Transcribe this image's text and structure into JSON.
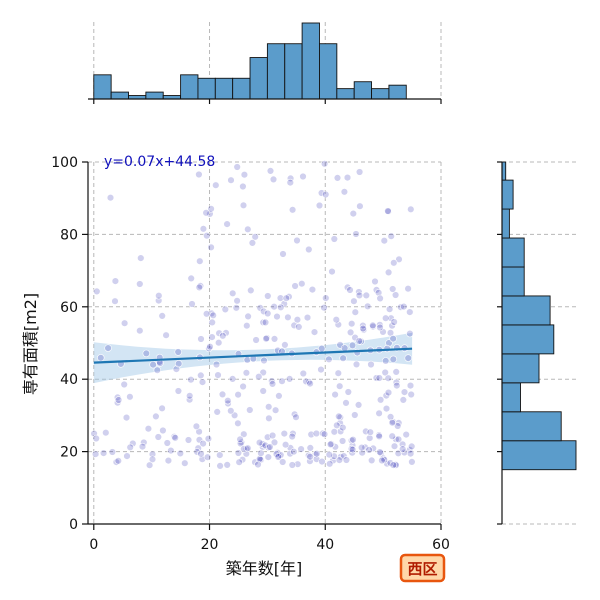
{
  "chart_data": {
    "type": "scatter",
    "title": "",
    "xlabel": "築年数[年]",
    "ylabel": "専有面積[m2]",
    "xlim": [
      -1,
      60
    ],
    "ylim": [
      0,
      100
    ],
    "xticks": [
      0,
      20,
      40,
      60
    ],
    "yticks": [
      0,
      20,
      40,
      60,
      80,
      100
    ],
    "grid": true,
    "annotation": "y=0.07x+44.58",
    "badge": "西区",
    "regression": {
      "slope": 0.07,
      "intercept": 44.58,
      "x_range": [
        0,
        55
      ]
    },
    "marginal_x_hist": {
      "bin_edges": [
        0,
        3,
        6,
        9,
        12,
        15,
        18,
        21,
        24,
        27,
        30,
        33,
        36,
        39,
        42,
        45,
        48,
        51,
        54,
        57
      ],
      "counts": [
        7,
        2,
        1,
        2,
        1,
        7,
        6,
        6,
        6,
        12,
        16,
        16,
        22,
        16,
        3,
        5,
        3,
        4,
        0
      ]
    },
    "marginal_y_hist": {
      "bin_edges": [
        15,
        23,
        31,
        39,
        47,
        55,
        63,
        71,
        79,
        87,
        95,
        100
      ],
      "counts": [
        20,
        16,
        5,
        10,
        14,
        13,
        6,
        6,
        2,
        3,
        1
      ]
    },
    "colors": {
      "points": "#2a2ab0",
      "regression_line": "#1f77b4",
      "ci_band": "#9ec6e6",
      "hist_fill": "#5b9ccb",
      "badge_fill": "#ffd7a8",
      "badge_border": "#e8560e",
      "badge_text": "#b01c00",
      "annotation_text": "#1111bb"
    },
    "points": []
  }
}
